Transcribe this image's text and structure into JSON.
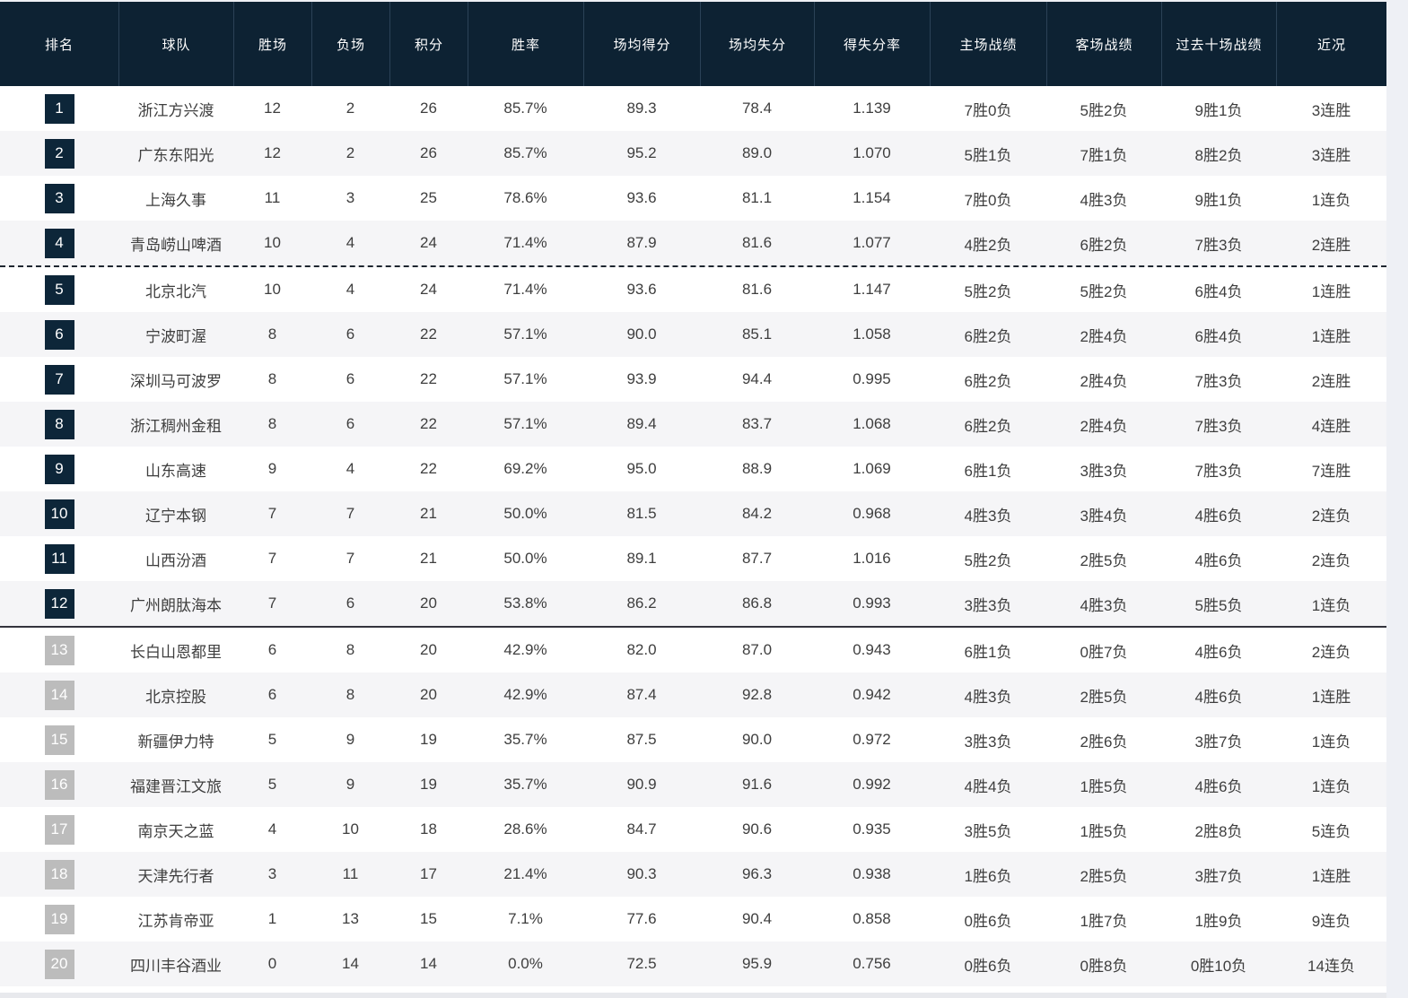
{
  "table": {
    "columns": [
      "排名",
      "球队",
      "胜场",
      "负场",
      "积分",
      "胜率",
      "场均得分",
      "场均失分",
      "得失分率",
      "主场战绩",
      "客场战绩",
      "过去十场战绩",
      "近况"
    ],
    "separators": {
      "dashed_after_rank": 4,
      "solid_after_rank": 12
    },
    "badge_dark_max_rank": 12,
    "rows": [
      {
        "rank": 1,
        "team": "浙江方兴渡",
        "wins": 12,
        "losses": 2,
        "points": 26,
        "win_rate": "85.7%",
        "pts_for": "89.3",
        "pts_against": "78.4",
        "ratio": "1.139",
        "home_record": "7胜0负",
        "away_record": "5胜2负",
        "last10_record": "9胜1负",
        "streak": "3连胜"
      },
      {
        "rank": 2,
        "team": "广东东阳光",
        "wins": 12,
        "losses": 2,
        "points": 26,
        "win_rate": "85.7%",
        "pts_for": "95.2",
        "pts_against": "89.0",
        "ratio": "1.070",
        "home_record": "5胜1负",
        "away_record": "7胜1负",
        "last10_record": "8胜2负",
        "streak": "3连胜"
      },
      {
        "rank": 3,
        "team": "上海久事",
        "wins": 11,
        "losses": 3,
        "points": 25,
        "win_rate": "78.6%",
        "pts_for": "93.6",
        "pts_against": "81.1",
        "ratio": "1.154",
        "home_record": "7胜0负",
        "away_record": "4胜3负",
        "last10_record": "9胜1负",
        "streak": "1连负"
      },
      {
        "rank": 4,
        "team": "青岛崂山啤酒",
        "wins": 10,
        "losses": 4,
        "points": 24,
        "win_rate": "71.4%",
        "pts_for": "87.9",
        "pts_against": "81.6",
        "ratio": "1.077",
        "home_record": "4胜2负",
        "away_record": "6胜2负",
        "last10_record": "7胜3负",
        "streak": "2连胜"
      },
      {
        "rank": 5,
        "team": "北京北汽",
        "wins": 10,
        "losses": 4,
        "points": 24,
        "win_rate": "71.4%",
        "pts_for": "93.6",
        "pts_against": "81.6",
        "ratio": "1.147",
        "home_record": "5胜2负",
        "away_record": "5胜2负",
        "last10_record": "6胜4负",
        "streak": "1连胜"
      },
      {
        "rank": 6,
        "team": "宁波町渥",
        "wins": 8,
        "losses": 6,
        "points": 22,
        "win_rate": "57.1%",
        "pts_for": "90.0",
        "pts_against": "85.1",
        "ratio": "1.058",
        "home_record": "6胜2负",
        "away_record": "2胜4负",
        "last10_record": "6胜4负",
        "streak": "1连胜"
      },
      {
        "rank": 7,
        "team": "深圳马可波罗",
        "wins": 8,
        "losses": 6,
        "points": 22,
        "win_rate": "57.1%",
        "pts_for": "93.9",
        "pts_against": "94.4",
        "ratio": "0.995",
        "home_record": "6胜2负",
        "away_record": "2胜4负",
        "last10_record": "7胜3负",
        "streak": "2连胜"
      },
      {
        "rank": 8,
        "team": "浙江稠州金租",
        "wins": 8,
        "losses": 6,
        "points": 22,
        "win_rate": "57.1%",
        "pts_for": "89.4",
        "pts_against": "83.7",
        "ratio": "1.068",
        "home_record": "6胜2负",
        "away_record": "2胜4负",
        "last10_record": "7胜3负",
        "streak": "4连胜"
      },
      {
        "rank": 9,
        "team": "山东高速",
        "wins": 9,
        "losses": 4,
        "points": 22,
        "win_rate": "69.2%",
        "pts_for": "95.0",
        "pts_against": "88.9",
        "ratio": "1.069",
        "home_record": "6胜1负",
        "away_record": "3胜3负",
        "last10_record": "7胜3负",
        "streak": "7连胜"
      },
      {
        "rank": 10,
        "team": "辽宁本钢",
        "wins": 7,
        "losses": 7,
        "points": 21,
        "win_rate": "50.0%",
        "pts_for": "81.5",
        "pts_against": "84.2",
        "ratio": "0.968",
        "home_record": "4胜3负",
        "away_record": "3胜4负",
        "last10_record": "4胜6负",
        "streak": "2连负"
      },
      {
        "rank": 11,
        "team": "山西汾酒",
        "wins": 7,
        "losses": 7,
        "points": 21,
        "win_rate": "50.0%",
        "pts_for": "89.1",
        "pts_against": "87.7",
        "ratio": "1.016",
        "home_record": "5胜2负",
        "away_record": "2胜5负",
        "last10_record": "4胜6负",
        "streak": "2连负"
      },
      {
        "rank": 12,
        "team": "广州朗肽海本",
        "wins": 7,
        "losses": 6,
        "points": 20,
        "win_rate": "53.8%",
        "pts_for": "86.2",
        "pts_against": "86.8",
        "ratio": "0.993",
        "home_record": "3胜3负",
        "away_record": "4胜3负",
        "last10_record": "5胜5负",
        "streak": "1连负"
      },
      {
        "rank": 13,
        "team": "长白山恩都里",
        "wins": 6,
        "losses": 8,
        "points": 20,
        "win_rate": "42.9%",
        "pts_for": "82.0",
        "pts_against": "87.0",
        "ratio": "0.943",
        "home_record": "6胜1负",
        "away_record": "0胜7负",
        "last10_record": "4胜6负",
        "streak": "2连负"
      },
      {
        "rank": 14,
        "team": "北京控股",
        "wins": 6,
        "losses": 8,
        "points": 20,
        "win_rate": "42.9%",
        "pts_for": "87.4",
        "pts_against": "92.8",
        "ratio": "0.942",
        "home_record": "4胜3负",
        "away_record": "2胜5负",
        "last10_record": "4胜6负",
        "streak": "1连胜"
      },
      {
        "rank": 15,
        "team": "新疆伊力特",
        "wins": 5,
        "losses": 9,
        "points": 19,
        "win_rate": "35.7%",
        "pts_for": "87.5",
        "pts_against": "90.0",
        "ratio": "0.972",
        "home_record": "3胜3负",
        "away_record": "2胜6负",
        "last10_record": "3胜7负",
        "streak": "1连负"
      },
      {
        "rank": 16,
        "team": "福建晋江文旅",
        "wins": 5,
        "losses": 9,
        "points": 19,
        "win_rate": "35.7%",
        "pts_for": "90.9",
        "pts_against": "91.6",
        "ratio": "0.992",
        "home_record": "4胜4负",
        "away_record": "1胜5负",
        "last10_record": "4胜6负",
        "streak": "1连负"
      },
      {
        "rank": 17,
        "team": "南京天之蓝",
        "wins": 4,
        "losses": 10,
        "points": 18,
        "win_rate": "28.6%",
        "pts_for": "84.7",
        "pts_against": "90.6",
        "ratio": "0.935",
        "home_record": "3胜5负",
        "away_record": "1胜5负",
        "last10_record": "2胜8负",
        "streak": "5连负"
      },
      {
        "rank": 18,
        "team": "天津先行者",
        "wins": 3,
        "losses": 11,
        "points": 17,
        "win_rate": "21.4%",
        "pts_for": "90.3",
        "pts_against": "96.3",
        "ratio": "0.938",
        "home_record": "1胜6负",
        "away_record": "2胜5负",
        "last10_record": "3胜7负",
        "streak": "1连胜"
      },
      {
        "rank": 19,
        "team": "江苏肯帝亚",
        "wins": 1,
        "losses": 13,
        "points": 15,
        "win_rate": "7.1%",
        "pts_for": "77.6",
        "pts_against": "90.4",
        "ratio": "0.858",
        "home_record": "0胜6负",
        "away_record": "1胜7负",
        "last10_record": "1胜9负",
        "streak": "9连负"
      },
      {
        "rank": 20,
        "team": "四川丰谷酒业",
        "wins": 0,
        "losses": 14,
        "points": 14,
        "win_rate": "0.0%",
        "pts_for": "72.5",
        "pts_against": "95.9",
        "ratio": "0.756",
        "home_record": "0胜6负",
        "away_record": "0胜8负",
        "last10_record": "0胜10负",
        "streak": "14连负"
      }
    ]
  },
  "colors": {
    "header_bg": "#0d2233",
    "header_divider": "#2b4257",
    "badge_dark": "#0d2639",
    "badge_gray": "#bcbcbc",
    "row_alt_bg": "#f5f5f7",
    "body_text": "#3e3e3e",
    "page_bg": "#eef0f5"
  }
}
